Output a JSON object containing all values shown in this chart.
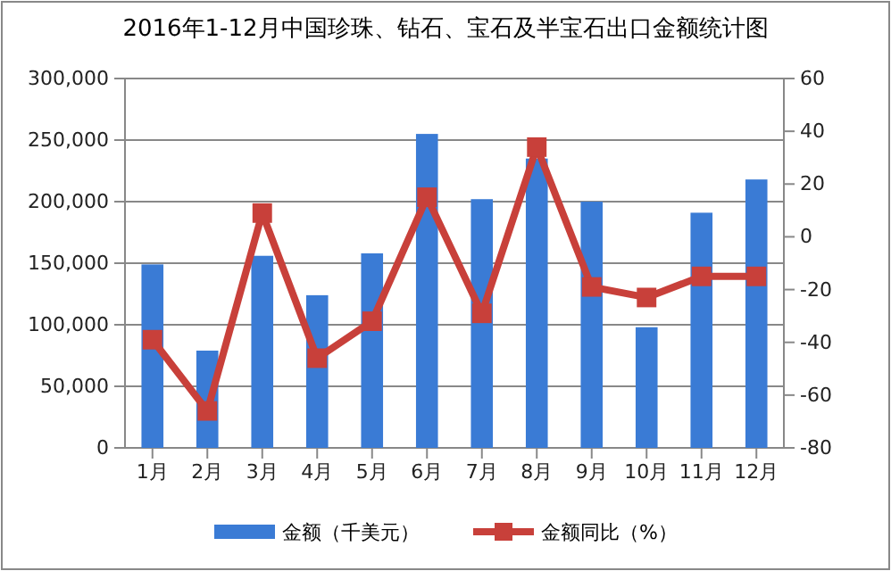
{
  "chart_data": {
    "type": "bar",
    "title": "2016年1-12月中国珍珠、钻石、宝石及半宝石出口金额统计图",
    "categories": [
      "1月",
      "2月",
      "3月",
      "4月",
      "5月",
      "6月",
      "7月",
      "8月",
      "9月",
      "10月",
      "11月",
      "12月"
    ],
    "series": [
      {
        "name": "金额（千美元）",
        "color": "#3a7bd5",
        "values": [
          149000,
          79000,
          156000,
          124000,
          158000,
          255000,
          202000,
          235000,
          200000,
          98000,
          191000,
          218000
        ]
      },
      {
        "name": "金额同比（%）",
        "type": "line",
        "axis": "y2",
        "color": "#c8403a",
        "marker": "square",
        "values": [
          -39,
          -66,
          9,
          -46,
          -32,
          15,
          -29,
          34,
          -19,
          -23,
          -15,
          -15
        ]
      }
    ],
    "ylim": [
      0,
      300000
    ],
    "yticks": [
      {
        "value": 0,
        "label": "0"
      },
      {
        "value": 50000,
        "label": "50,000"
      },
      {
        "value": 100000,
        "label": "100,000"
      },
      {
        "value": 150000,
        "label": "150,000"
      },
      {
        "value": 200000,
        "label": "200,000"
      },
      {
        "value": 250000,
        "label": "250,000"
      },
      {
        "value": 300000,
        "label": "300,000"
      }
    ],
    "y2lim": [
      -80,
      60
    ],
    "y2ticks": [
      -80,
      -60,
      -40,
      -20,
      0,
      20,
      40,
      60
    ],
    "grid": "y",
    "legend": "bottom"
  }
}
